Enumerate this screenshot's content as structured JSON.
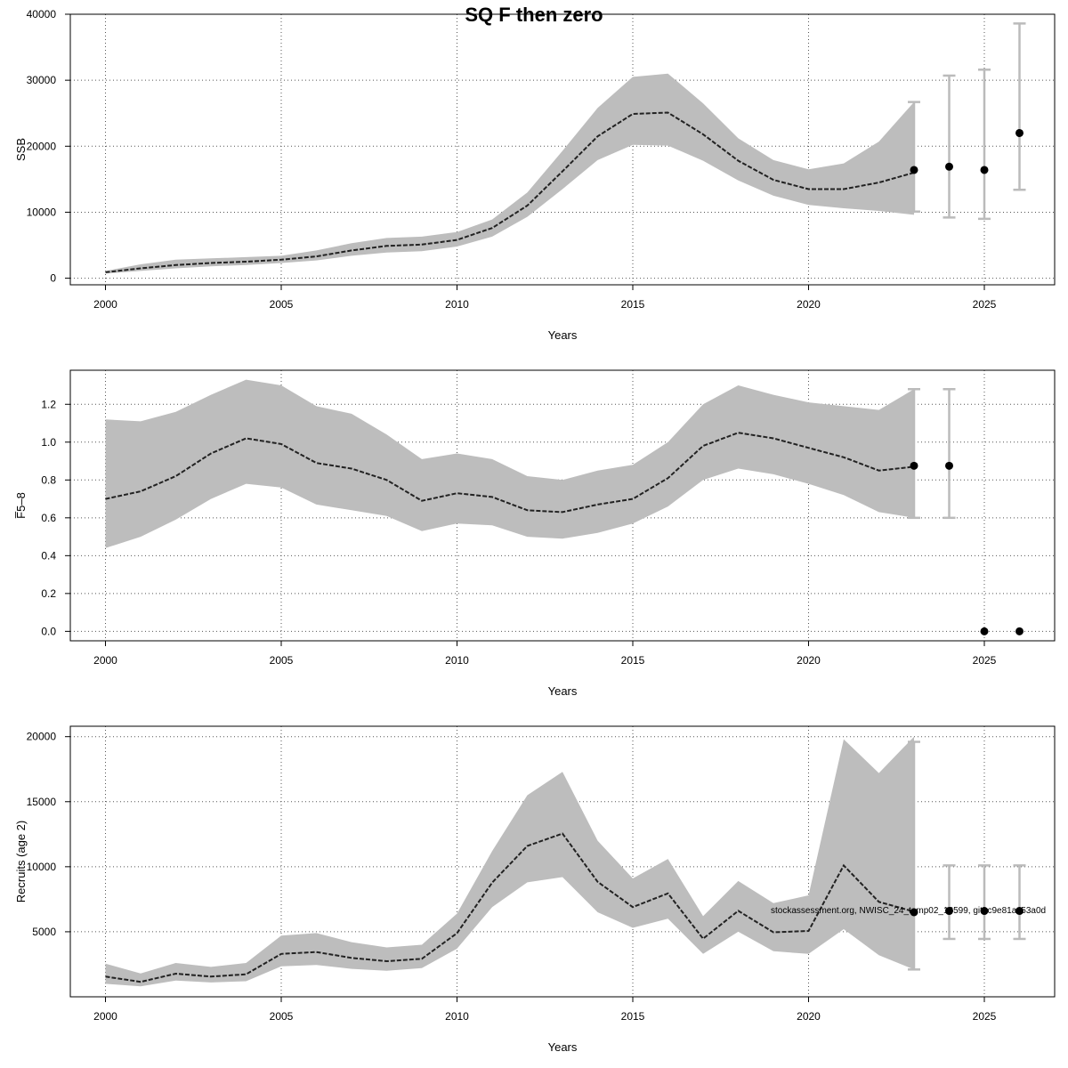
{
  "title": "SQ F then zero",
  "stamp": "stockassessment.org, NWISC_24_temp02_18599, git: c9e81ac53a0d",
  "colors": {
    "band": "#bdbdbd",
    "line": "#222222",
    "grid": "#555555",
    "errorbar": "#bbbbbb",
    "point": "#000000"
  },
  "chart_data": [
    {
      "type": "line",
      "id": "ssb",
      "ylabel": "SSB",
      "xlabel": "Years",
      "xlim": [
        1999,
        2027
      ],
      "ylim": [
        -1000,
        40000
      ],
      "xticks": [
        2000,
        2005,
        2010,
        2015,
        2020,
        2025
      ],
      "xtick_labels": [
        "2000",
        "2005",
        "2010",
        "2015",
        "2020",
        "2025"
      ],
      "yticks": [
        0,
        10000,
        20000,
        30000,
        40000
      ],
      "ytick_labels": [
        "0",
        "10000",
        "20000",
        "30000",
        "40000"
      ],
      "x": [
        2000,
        2001,
        2002,
        2003,
        2004,
        2005,
        2006,
        2007,
        2008,
        2009,
        2010,
        2011,
        2012,
        2013,
        2014,
        2015,
        2016,
        2017,
        2018,
        2019,
        2020,
        2021,
        2022,
        2023
      ],
      "y": [
        900,
        1500,
        2000,
        2300,
        2500,
        2800,
        3300,
        4200,
        4900,
        5100,
        5800,
        7600,
        11000,
        16200,
        21500,
        24900,
        25100,
        21800,
        17800,
        14900,
        13500,
        13500,
        14500,
        16000
      ],
      "lower": [
        700,
        1100,
        1500,
        1800,
        2000,
        2300,
        2700,
        3400,
        3900,
        4100,
        4800,
        6300,
        9300,
        13500,
        17900,
        20200,
        20100,
        17800,
        14800,
        12500,
        11100,
        10600,
        10200,
        9600
      ],
      "upper": [
        1100,
        2100,
        2800,
        3000,
        3200,
        3400,
        4200,
        5300,
        6100,
        6300,
        7000,
        8900,
        13000,
        19300,
        25800,
        30500,
        31000,
        26500,
        21200,
        17900,
        16500,
        17400,
        20700,
        26700
      ],
      "projection": [
        {
          "x": 2023,
          "y": 16400,
          "low": 10100,
          "high": 26700
        },
        {
          "x": 2024,
          "y": 16900,
          "low": 9200,
          "high": 30700
        },
        {
          "x": 2025,
          "y": 16400,
          "low": 9000,
          "high": 31600
        },
        {
          "x": 2026,
          "y": 22000,
          "low": 13400,
          "high": 38600
        }
      ]
    },
    {
      "type": "line",
      "id": "fbar",
      "ylabel": "F̅5–8",
      "xlabel": "Years",
      "xlim": [
        1999,
        2027
      ],
      "ylim": [
        -0.05,
        1.38
      ],
      "xticks": [
        2000,
        2005,
        2010,
        2015,
        2020,
        2025
      ],
      "xtick_labels": [
        "2000",
        "2005",
        "2010",
        "2015",
        "2020",
        "2025"
      ],
      "yticks": [
        0.0,
        0.2,
        0.4,
        0.6,
        0.8,
        1.0,
        1.2
      ],
      "ytick_labels": [
        "0.0",
        "0.2",
        "0.4",
        "0.6",
        "0.8",
        "1.0",
        "1.2"
      ],
      "x": [
        2000,
        2001,
        2002,
        2003,
        2004,
        2005,
        2006,
        2007,
        2008,
        2009,
        2010,
        2011,
        2012,
        2013,
        2014,
        2015,
        2016,
        2017,
        2018,
        2019,
        2020,
        2021,
        2022,
        2023
      ],
      "y": [
        0.7,
        0.74,
        0.82,
        0.94,
        1.02,
        0.99,
        0.89,
        0.86,
        0.8,
        0.69,
        0.73,
        0.71,
        0.64,
        0.63,
        0.67,
        0.7,
        0.81,
        0.98,
        1.05,
        1.02,
        0.97,
        0.92,
        0.85,
        0.87
      ],
      "lower": [
        0.44,
        0.5,
        0.59,
        0.7,
        0.78,
        0.76,
        0.67,
        0.64,
        0.61,
        0.53,
        0.57,
        0.56,
        0.5,
        0.49,
        0.52,
        0.57,
        0.66,
        0.8,
        0.86,
        0.83,
        0.78,
        0.72,
        0.63,
        0.6
      ],
      "upper": [
        1.12,
        1.11,
        1.16,
        1.25,
        1.33,
        1.3,
        1.19,
        1.15,
        1.04,
        0.91,
        0.94,
        0.91,
        0.82,
        0.8,
        0.85,
        0.88,
        1.0,
        1.2,
        1.3,
        1.25,
        1.21,
        1.19,
        1.17,
        1.28
      ],
      "projection": [
        {
          "x": 2023,
          "y": 0.875,
          "low": 0.6,
          "high": 1.28
        },
        {
          "x": 2024,
          "y": 0.875,
          "low": 0.6,
          "high": 1.28
        },
        {
          "x": 2025,
          "y": 0.0,
          "low": null,
          "high": null
        },
        {
          "x": 2026,
          "y": 0.0,
          "low": null,
          "high": null
        }
      ]
    },
    {
      "type": "line",
      "id": "recruits",
      "ylabel": "Recruits (age 2)",
      "xlabel": "Years",
      "xlim": [
        1999,
        2027
      ],
      "ylim": [
        0,
        20800
      ],
      "xticks": [
        2000,
        2005,
        2010,
        2015,
        2020,
        2025
      ],
      "xtick_labels": [
        "2000",
        "2005",
        "2010",
        "2015",
        "2020",
        "2025"
      ],
      "yticks": [
        5000,
        10000,
        15000,
        20000
      ],
      "ytick_labels": [
        "5000",
        "10000",
        "15000",
        "20000"
      ],
      "x": [
        2000,
        2001,
        2002,
        2003,
        2004,
        2005,
        2006,
        2007,
        2008,
        2009,
        2010,
        2011,
        2012,
        2013,
        2014,
        2015,
        2016,
        2017,
        2018,
        2019,
        2020,
        2021,
        2022,
        2023
      ],
      "y": [
        1550,
        1150,
        1780,
        1550,
        1730,
        3300,
        3440,
        2990,
        2740,
        2920,
        4890,
        8780,
        11600,
        12550,
        8840,
        6900,
        7950,
        4470,
        6610,
        4960,
        5060,
        10100,
        7300,
        6550
      ],
      "lower": [
        1000,
        800,
        1250,
        1100,
        1200,
        2350,
        2450,
        2150,
        2000,
        2200,
        3700,
        6900,
        8800,
        9200,
        6500,
        5300,
        6000,
        3300,
        5000,
        3500,
        3300,
        5200,
        3200,
        2100
      ],
      "upper": [
        2550,
        1800,
        2600,
        2300,
        2600,
        4700,
        4900,
        4200,
        3800,
        4000,
        6400,
        11200,
        15500,
        17300,
        12000,
        9100,
        10600,
        6200,
        8900,
        7200,
        7800,
        19800,
        17200,
        20000
      ],
      "projection": [
        {
          "x": 2023,
          "y": 6500,
          "low": 2100,
          "high": 19600
        },
        {
          "x": 2024,
          "y": 6600,
          "low": 4450,
          "high": 10100
        },
        {
          "x": 2025,
          "y": 6600,
          "low": 4450,
          "high": 10100
        },
        {
          "x": 2026,
          "y": 6600,
          "low": 4450,
          "high": 10100
        }
      ]
    }
  ]
}
